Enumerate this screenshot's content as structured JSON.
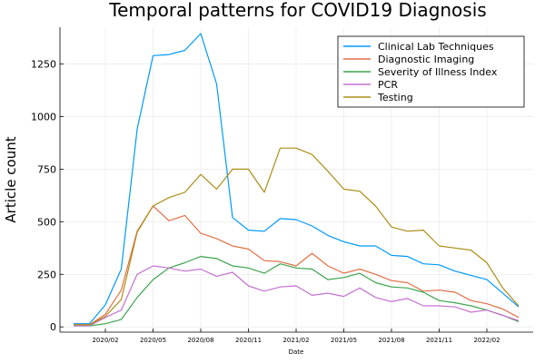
{
  "chart_data": {
    "type": "line",
    "title": "Temporal patterns for COVID19 Diagnosis",
    "xlabel": "Date",
    "ylabel": "Article count",
    "ylim": [
      -25,
      1425
    ],
    "y_ticks": [
      0,
      250,
      500,
      750,
      1000,
      1250
    ],
    "x_tick_labels": [
      "2020/02",
      "2020/05",
      "2020/08",
      "2020/11",
      "2021/02",
      "2021/05",
      "2021/08",
      "2021/11",
      "2022/02"
    ],
    "x": [
      "2019-12",
      "2020-01",
      "2020-02",
      "2020-03",
      "2020-04",
      "2020-05",
      "2020-06",
      "2020-07",
      "2020-08",
      "2020-09",
      "2020-10",
      "2020-11",
      "2020-12",
      "2021-01",
      "2021-02",
      "2021-03",
      "2021-04",
      "2021-05",
      "2021-06",
      "2021-07",
      "2021-08",
      "2021-09",
      "2021-10",
      "2021-11",
      "2021-12",
      "2022-01",
      "2022-02",
      "2022-03",
      "2022-04"
    ],
    "grid": true,
    "legend_position": "top-right",
    "series": [
      {
        "name": "Clinical Lab Techniques",
        "color": "#009AFA",
        "values": [
          15,
          15,
          105,
          275,
          940,
          1290,
          1295,
          1315,
          1395,
          1155,
          520,
          460,
          455,
          515,
          510,
          480,
          435,
          405,
          385,
          385,
          340,
          335,
          300,
          295,
          265,
          245,
          225,
          160,
          95
        ]
      },
      {
        "name": "Diagnostic Imaging",
        "color": "#E26F46",
        "values": [
          10,
          10,
          60,
          175,
          455,
          575,
          505,
          530,
          445,
          420,
          385,
          370,
          315,
          310,
          290,
          350,
          290,
          255,
          275,
          250,
          220,
          210,
          170,
          175,
          165,
          125,
          110,
          85,
          45
        ]
      },
      {
        "name": "Severity of Illness Index",
        "color": "#3DA44D",
        "values": [
          5,
          5,
          15,
          35,
          140,
          225,
          280,
          305,
          335,
          325,
          290,
          280,
          255,
          300,
          280,
          275,
          225,
          235,
          255,
          210,
          190,
          185,
          165,
          125,
          115,
          100,
          80,
          55,
          25
        ]
      },
      {
        "name": "PCR",
        "color": "#C371D2",
        "values": [
          5,
          5,
          45,
          80,
          250,
          290,
          280,
          265,
          275,
          240,
          260,
          195,
          170,
          190,
          195,
          150,
          160,
          145,
          185,
          140,
          120,
          135,
          100,
          100,
          95,
          70,
          80,
          55,
          30
        ]
      },
      {
        "name": "Testing",
        "color": "#AC8D18",
        "values": [
          10,
          10,
          50,
          130,
          450,
          575,
          615,
          640,
          725,
          655,
          750,
          750,
          640,
          850,
          850,
          820,
          740,
          655,
          645,
          575,
          475,
          455,
          460,
          385,
          375,
          365,
          305,
          185,
          100
        ]
      }
    ]
  }
}
